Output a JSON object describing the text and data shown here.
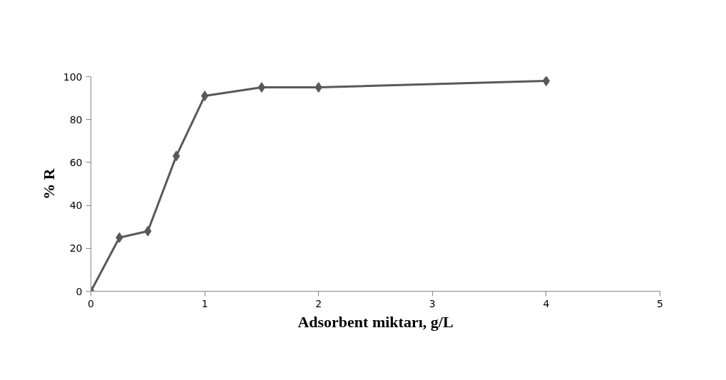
{
  "chart_data": {
    "type": "line",
    "xlabel": "Adsorbent miktarı, g/L",
    "ylabel": "% R",
    "x": [
      0,
      0.25,
      0.5,
      0.75,
      1,
      1.5,
      2,
      4
    ],
    "series": [
      {
        "color": "#595959",
        "values": [
          0,
          25,
          28,
          63,
          91,
          95,
          95,
          98
        ]
      }
    ],
    "xlim": [
      0,
      5
    ],
    "xticks": [
      0,
      1,
      2,
      3,
      4,
      5
    ],
    "ylim": [
      0,
      100
    ],
    "yticks": [
      0,
      20,
      40,
      60,
      80,
      100
    ],
    "grid": false,
    "marker": "diamond",
    "line_style": "solid"
  }
}
